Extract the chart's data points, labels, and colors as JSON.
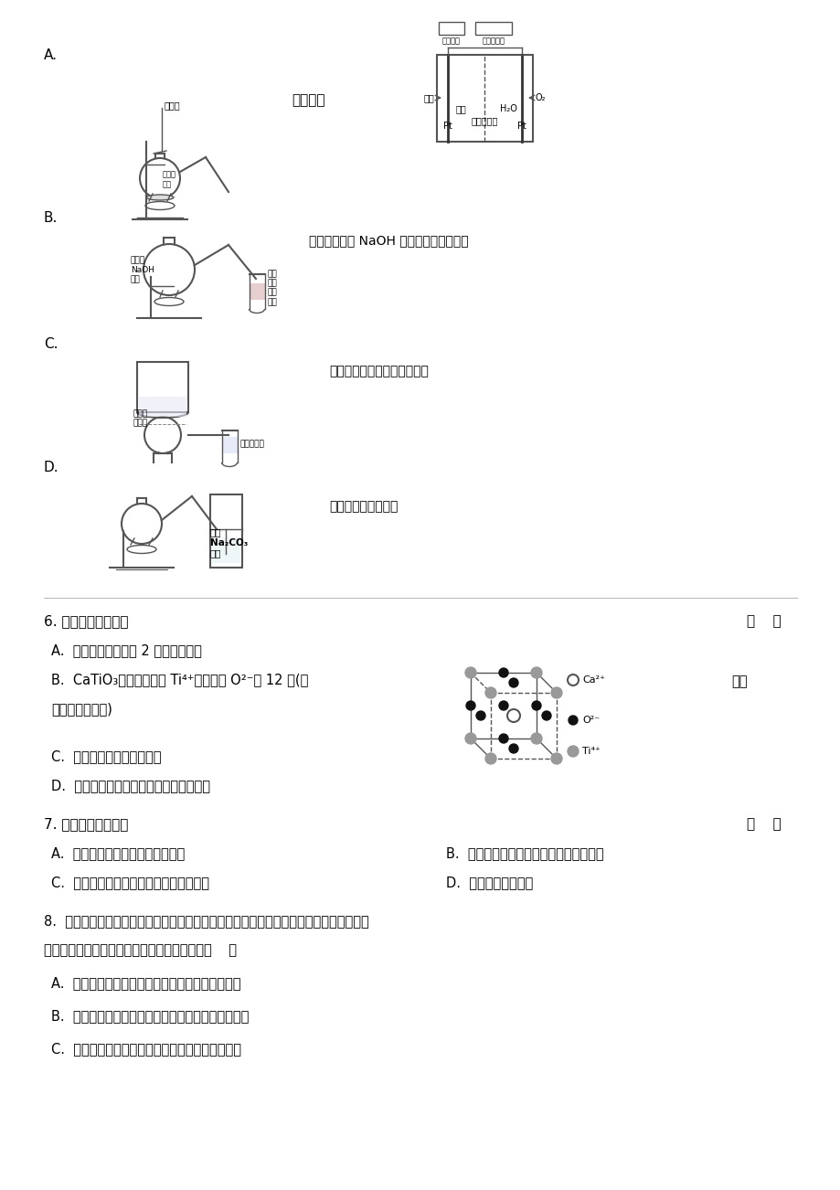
{
  "bg_color": "#ffffff",
  "text_color": "#000000",
  "page_width": 9.2,
  "page_height": 13.02,
  "content": {
    "section_A_label": "A.",
    "section_A_label2": "制取乙烯",
    "section_B_label": "B.",
    "section_B_text": "检验溴乙烷与 NaOH 醇溶液共热产生乙烯",
    "section_C_label": "C.",
    "section_C_text": "验证酸性：盐酸＞碳酸＞苯酚",
    "section_D_label": "D.",
    "section_D_text": "制备和收集乙酸乙酯",
    "q6_text": "6. 下列说法正确的是",
    "q6_bracket": "（    ）",
    "q6_A": "A.  基态钙原子核外有 2 个未成对电子",
    "q6_B_line1": "B.  CaTiO₃晶体中与每个 Ti⁴⁺最邻近的 O²⁻有 12 个(如",
    "q6_B_fig_label": "图是",
    "q6_B_line2": "其晶胞结构模型)",
    "q6_C": "C.  分子晶体中都存在共价键",
    "q6_D": "D.  金属晶体的熔点都比分子晶体的熔点高",
    "q7_text": "7. 下列说法错误的是",
    "q7_bracket": "（    ）",
    "q7_A": "A.  乙烷不能与浓盐酸发生取代反应",
    "q7_B": "B.  乙烯可以用作生产食品包装材料的原料",
    "q7_C": "C.  乙醇室温下在水中的溶解度大于溴乙烷",
    "q7_D": "D.  福尔马林是纯净物",
    "q8_line1": "8.  下图所示是一种酸性燃料电池酒精检测仪，具有自动吹气流量侦测与控制的功能，非常",
    "q8_line2": "适合进行现场酒精检测。下列说法不正确的是（    ）",
    "q8_A": "A.  呼气进入的一极为正极，通入氧气的一极为负极",
    "q8_B": "B.  呼气中的酒精（乙醇）蒸气在检测中发生氧化反应",
    "q8_C": "C.  电流由氧气所在的铂电极经外电路流向另一电极"
  }
}
